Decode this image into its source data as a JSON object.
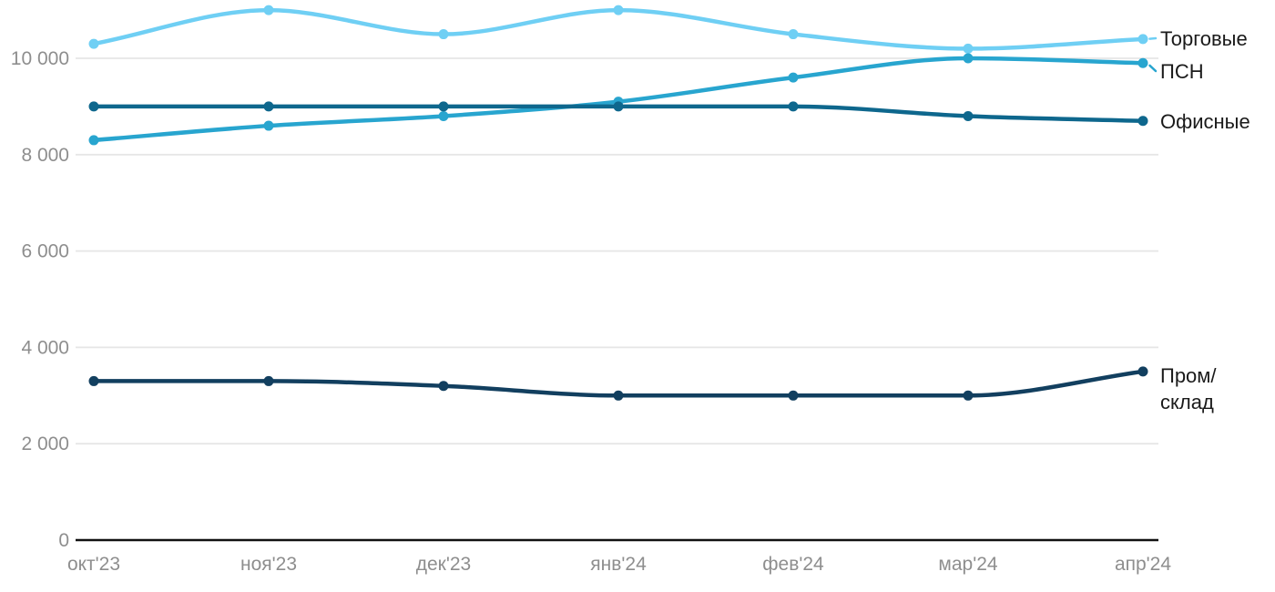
{
  "page": {
    "background_color": "#FFFFFF"
  },
  "chart_data": {
    "type": "line",
    "title": "",
    "xlabel": "",
    "ylabel": "",
    "categories": [
      "окт'23",
      "ноя'23",
      "дек'23",
      "янв'24",
      "фев'24",
      "мар'24",
      "апр'24"
    ],
    "y_ticks": [
      0,
      2000,
      4000,
      6000,
      8000,
      10000
    ],
    "y_tick_labels": [
      "0",
      "2 000",
      "4 000",
      "6 000",
      "8 000",
      "10 000"
    ],
    "ylim": [
      0,
      11300
    ],
    "grid": "horizontal-only",
    "legend_position": "inline-right-of-last-point",
    "marker": "circle",
    "line_style": "smooth-monotone",
    "series": [
      {
        "name": "Торговые",
        "color": "#6FCFF4",
        "values": [
          10300,
          11000,
          10500,
          11000,
          10500,
          10200,
          10400
        ]
      },
      {
        "name": "ПСН",
        "color": "#28A5CF",
        "values": [
          8300,
          8600,
          8800,
          9100,
          9600,
          10000,
          9900
        ]
      },
      {
        "name": "Офисные",
        "color": "#0E678D",
        "values": [
          9000,
          9000,
          9000,
          9000,
          9000,
          8800,
          8700
        ]
      },
      {
        "name": "Пром/склад",
        "color": "#123F5F",
        "values": [
          3300,
          3300,
          3200,
          3000,
          3000,
          3000,
          3500
        ]
      }
    ],
    "style": {
      "gridline_color": "#E6E6E6",
      "axis_line_color": "#111111",
      "tick_label_color": "#8E8E8E",
      "series_label_color": "#1A1A1A"
    }
  }
}
